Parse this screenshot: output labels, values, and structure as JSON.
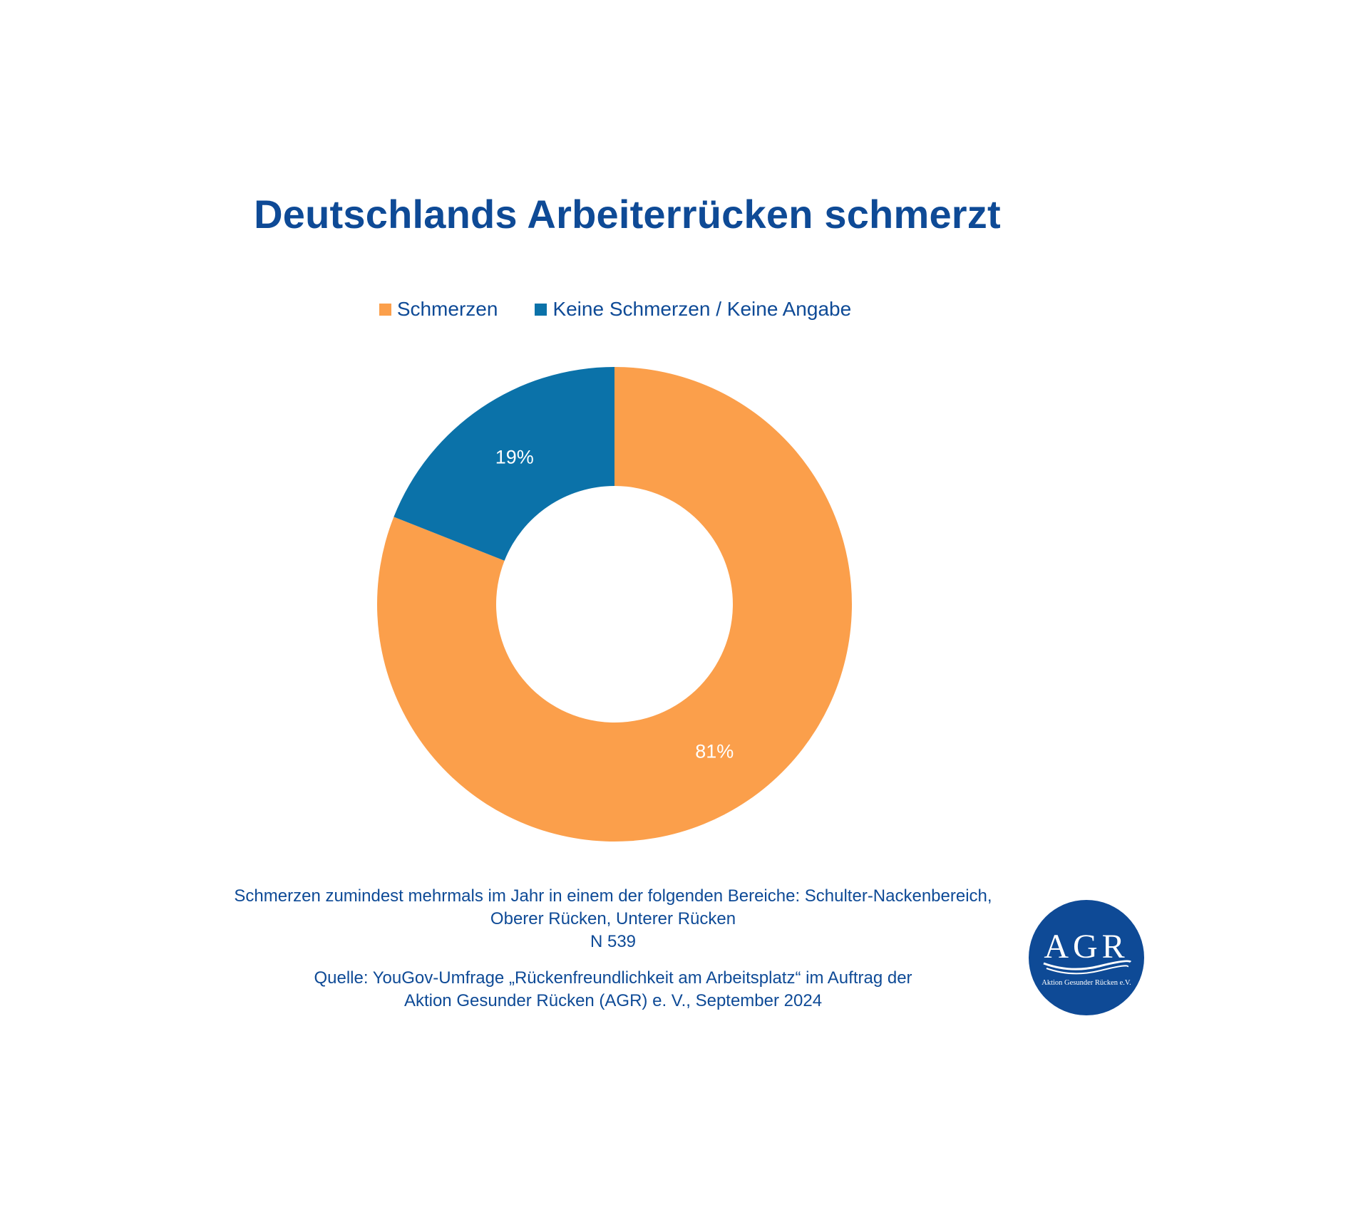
{
  "chart_data": {
    "type": "pie",
    "variant": "donut",
    "title": "Deutschlands Arbeiterrücken schmerzt",
    "categories": [
      "Schmerzen",
      "Keine Schmerzen / Keine Angabe"
    ],
    "values": [
      81,
      19
    ],
    "labels": [
      "81%",
      "19%"
    ],
    "colors": [
      "#fb9f4b",
      "#0b72a9"
    ],
    "legend_position": "top"
  },
  "notes": {
    "line1": "Schmerzen zumindest mehrmals im Jahr in einem der folgenden Bereiche: Schulter-Nackenbereich,",
    "line2": "Oberer Rücken, Unterer Rücken",
    "line3": "N 539"
  },
  "source": {
    "line1": "Quelle: YouGov-Umfrage „Rückenfreundlichkeit am Arbeitsplatz“ im Auftrag der",
    "line2": "Aktion Gesunder Rücken (AGR) e. V., September 2024"
  },
  "logo": {
    "letters": "AGR",
    "subtitle": "Aktion Gesunder Rücken e.V.",
    "color": "#0e4a96"
  },
  "colors": {
    "text": "#0e4a96"
  }
}
